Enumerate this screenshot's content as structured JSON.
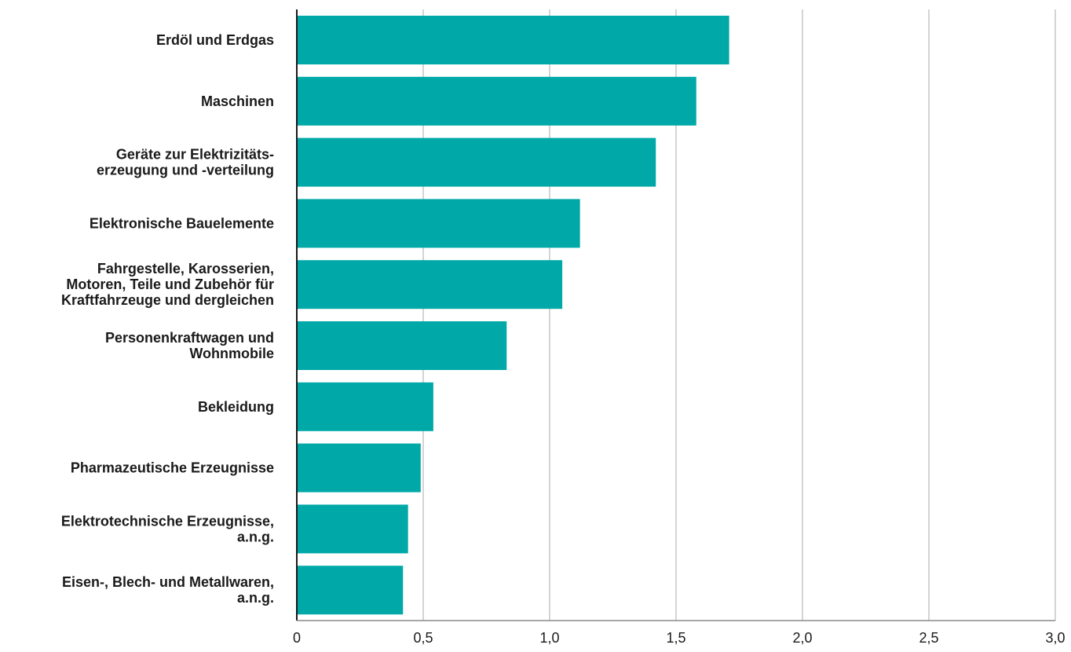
{
  "chart_data": {
    "type": "bar",
    "orientation": "horizontal",
    "title": "",
    "xlabel": "",
    "ylabel": "",
    "categories": [
      [
        "Erdöl und Erdgas"
      ],
      [
        "Maschinen"
      ],
      [
        "Geräte zur Elektrizitäts-",
        "erzeugung und -verteilung"
      ],
      [
        "Elektronische Bauelemente"
      ],
      [
        "Fahrgestelle, Karosserien,",
        "Motoren, Teile und Zubehör für",
        "Kraftfahrzeuge und dergleichen"
      ],
      [
        "Personenkraftwagen und",
        "Wohnmobile"
      ],
      [
        "Bekleidung"
      ],
      [
        "Pharmazeutische Erzeugnisse"
      ],
      [
        "Elektrotechnische Erzeugnisse,",
        "a.n.g."
      ],
      [
        "Eisen-, Blech- und Metallwaren,",
        "a.n.g."
      ]
    ],
    "values": [
      1.71,
      1.58,
      1.42,
      1.12,
      1.05,
      0.83,
      0.54,
      0.49,
      0.44,
      0.42
    ],
    "xlim": [
      0,
      3.0
    ],
    "ticks": [
      0,
      0.5,
      1.0,
      1.5,
      2.0,
      2.5,
      3.0
    ],
    "tick_labels": [
      "0",
      "0,5",
      "1,0",
      "1,5",
      "2,0",
      "2,5",
      "3,0"
    ],
    "grid": true,
    "legend": "none",
    "bar_color": "#00a8a8",
    "gridline_color": "#a8a8a8"
  }
}
